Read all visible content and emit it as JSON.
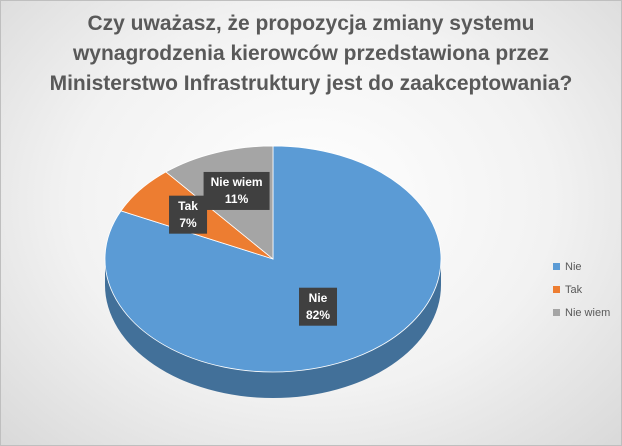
{
  "chart_data": {
    "type": "pie",
    "title": "Czy uważasz, że propozycja zmiany systemu wynagrodzenia kierowców przedstawiona przez Ministerstwo Infrastruktury jest do zaakceptowania?",
    "categories": [
      "Nie",
      "Tak",
      "Nie wiem"
    ],
    "values": [
      82,
      7,
      11
    ],
    "value_labels": [
      "82%",
      "7%",
      "11%"
    ],
    "colors": [
      "#5b9bd5",
      "#ed7d31",
      "#a5a5a5"
    ],
    "legend": "right"
  }
}
